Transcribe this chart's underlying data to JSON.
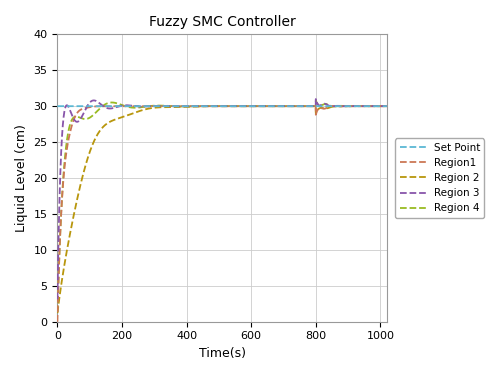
{
  "title": "Fuzzy SMC Controller",
  "xlabel": "Time(s)",
  "ylabel": "Liquid Level (cm)",
  "xlim": [
    0,
    1020
  ],
  "ylim": [
    0,
    40
  ],
  "xticks": [
    0,
    200,
    400,
    600,
    800,
    1000
  ],
  "yticks": [
    0,
    5,
    10,
    15,
    20,
    25,
    30,
    35,
    40
  ],
  "setpoint": 30,
  "legend_labels": [
    "Set Point",
    "Region1",
    "Region 2",
    "Region 3",
    "Region 4"
  ],
  "colors": {
    "setpoint": "#5BB8D4",
    "region1": "#CC7755",
    "region2": "#B8960C",
    "region3": "#8855AA",
    "region4": "#99BB22"
  },
  "background": "#FFFFFF",
  "grid_color": "#CCCCCC"
}
